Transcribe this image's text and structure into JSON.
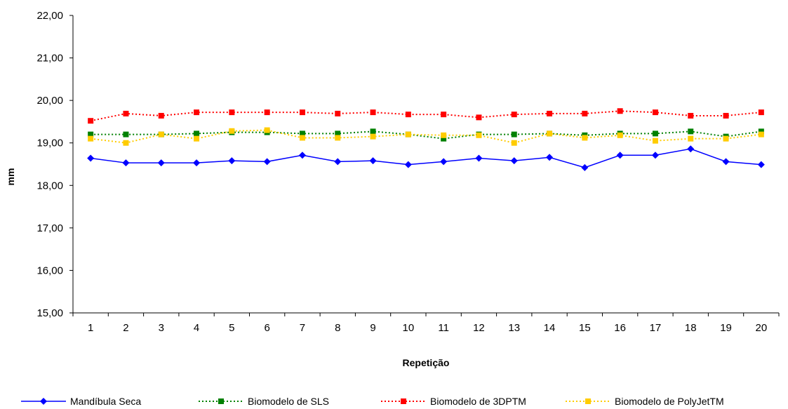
{
  "chart_data": {
    "type": "line",
    "title": "",
    "xlabel": "Repetição",
    "ylabel": "mm",
    "categories": [
      "1",
      "2",
      "3",
      "4",
      "5",
      "6",
      "7",
      "8",
      "9",
      "10",
      "11",
      "12",
      "13",
      "14",
      "15",
      "16",
      "17",
      "18",
      "19",
      "20"
    ],
    "ylim": [
      15,
      22
    ],
    "yticks": [
      15,
      16,
      17,
      18,
      19,
      20,
      21,
      22
    ],
    "ytick_labels": [
      "15,00",
      "16,00",
      "17,00",
      "18,00",
      "19,00",
      "20,00",
      "21,00",
      "22,00"
    ],
    "grid": false,
    "legend_position": "bottom",
    "series": [
      {
        "name": "Mandíbula Seca",
        "color": "#0000FF",
        "line_style": "solid",
        "marker": "diamond",
        "values": [
          18.64,
          18.53,
          18.53,
          18.53,
          18.58,
          18.56,
          18.71,
          18.56,
          18.58,
          18.49,
          18.56,
          18.64,
          18.58,
          18.66,
          18.42,
          18.71,
          18.71,
          18.86,
          18.56,
          18.49
        ]
      },
      {
        "name": "Biomodelo de SLS",
        "color": "#008000",
        "line_style": "dotted",
        "marker": "square",
        "values": [
          19.2,
          19.2,
          19.2,
          19.22,
          19.25,
          19.25,
          19.22,
          19.22,
          19.27,
          19.2,
          19.1,
          19.2,
          19.2,
          19.22,
          19.18,
          19.22,
          19.22,
          19.27,
          19.15,
          19.27
        ]
      },
      {
        "name": "Biomodelo de 3DPTM",
        "color": "#FF0000",
        "line_style": "dotted",
        "marker": "square",
        "values": [
          19.52,
          19.69,
          19.64,
          19.72,
          19.72,
          19.72,
          19.72,
          19.69,
          19.72,
          19.67,
          19.67,
          19.6,
          19.67,
          19.69,
          19.69,
          19.75,
          19.72,
          19.64,
          19.64,
          19.72
        ]
      },
      {
        "name": "Biomodelo de PolyJetTM",
        "color": "#FFCC00",
        "line_style": "dotted",
        "marker": "square",
        "values": [
          19.1,
          19.0,
          19.2,
          19.1,
          19.28,
          19.3,
          19.12,
          19.12,
          19.15,
          19.2,
          19.18,
          19.18,
          19.0,
          19.22,
          19.12,
          19.18,
          19.05,
          19.1,
          19.1,
          19.2
        ]
      }
    ]
  }
}
